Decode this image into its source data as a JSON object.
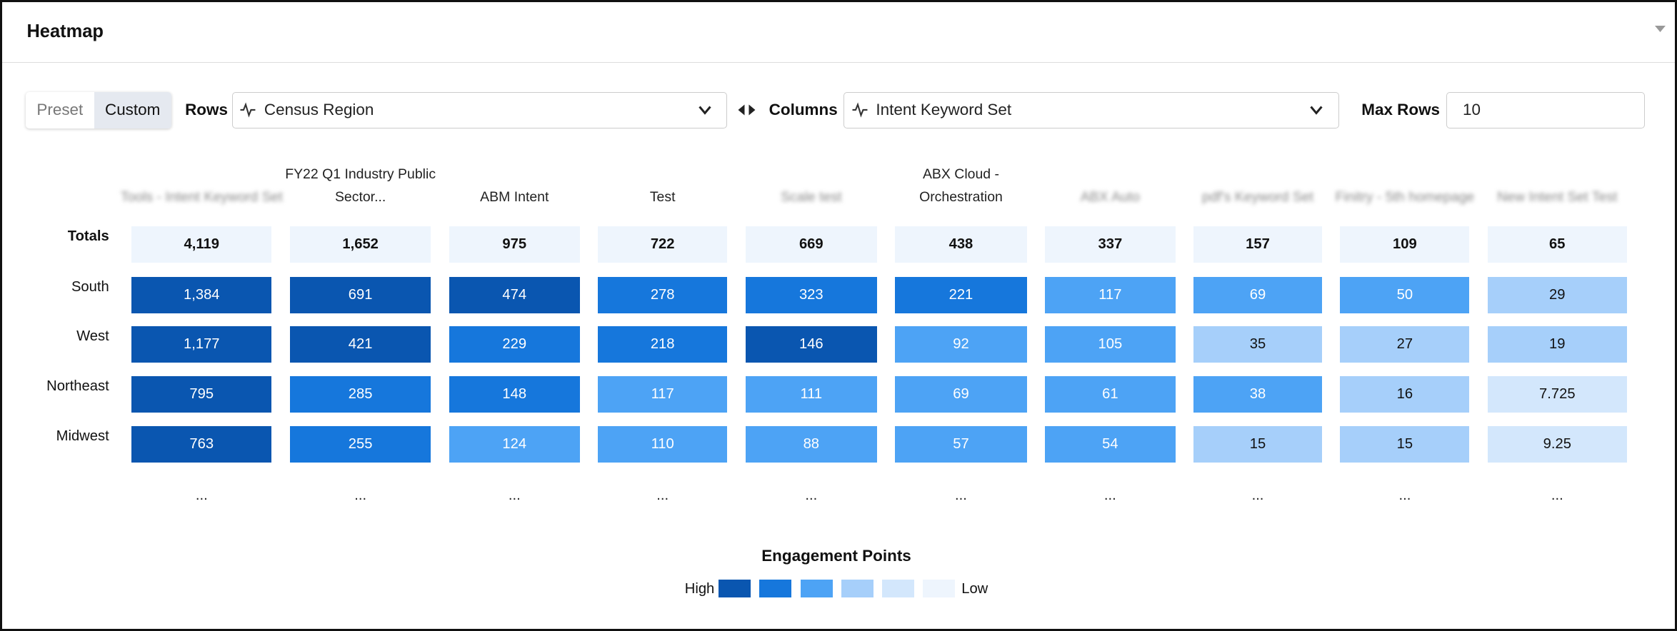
{
  "header": {
    "title": "Heatmap"
  },
  "controls": {
    "mode_options": [
      "Preset",
      "Custom"
    ],
    "rows_label": "Rows",
    "rows_value": "Census Region",
    "columns_label": "Columns",
    "columns_value": "Intent Keyword Set",
    "max_rows_label": "Max Rows",
    "max_rows_value": "10"
  },
  "table": {
    "columns": [
      {
        "name": "Tools - Intent Keyword Set",
        "blurred": true
      },
      {
        "name": "FY22 Q1 Industry Public Sector...",
        "blurred": false
      },
      {
        "name": "ABM Intent",
        "blurred": false
      },
      {
        "name": "Test",
        "blurred": false
      },
      {
        "name": "Scale test",
        "blurred": true
      },
      {
        "name": "ABX Cloud - Orchestration",
        "blurred": false
      },
      {
        "name": "ABX Auto",
        "blurred": true
      },
      {
        "name": "pdf's Keyword Set",
        "blurred": true
      },
      {
        "name": "Finitry - 5th homepage",
        "blurred": true
      },
      {
        "name": "New Intent Set Test",
        "blurred": true
      }
    ],
    "totals_label": "Totals",
    "totals": [
      "4,119",
      "1,652",
      "975",
      "722",
      "669",
      "438",
      "337",
      "157",
      "109",
      "65"
    ],
    "totals_color": "#eef5fd",
    "rows": [
      {
        "label": "South",
        "cells": [
          "1,384",
          "691",
          "474",
          "278",
          "323",
          "221",
          "117",
          "69",
          "50",
          "29"
        ],
        "colors": [
          "#0a56b0",
          "#0a56b0",
          "#0a56b0",
          "#1677dc",
          "#1677dc",
          "#1677dc",
          "#4da3f5",
          "#4da3f5",
          "#4da3f5",
          "#a6cffa"
        ]
      },
      {
        "label": "West",
        "cells": [
          "1,177",
          "421",
          "229",
          "218",
          "146",
          "92",
          "105",
          "35",
          "27",
          "19"
        ],
        "colors": [
          "#0a56b0",
          "#0a56b0",
          "#1677dc",
          "#1677dc",
          "#0a56b0",
          "#4da3f5",
          "#4da3f5",
          "#a6cffa",
          "#a6cffa",
          "#a6cffa"
        ]
      },
      {
        "label": "Northeast",
        "cells": [
          "795",
          "285",
          "148",
          "117",
          "111",
          "69",
          "61",
          "38",
          "16",
          "7.725"
        ],
        "colors": [
          "#0a56b0",
          "#1677dc",
          "#1677dc",
          "#4da3f5",
          "#4da3f5",
          "#4da3f5",
          "#4da3f5",
          "#4da3f5",
          "#a6cffa",
          "#d3e7fc"
        ]
      },
      {
        "label": "Midwest",
        "cells": [
          "763",
          "255",
          "124",
          "110",
          "88",
          "57",
          "54",
          "15",
          "15",
          "9.25"
        ],
        "colors": [
          "#0a56b0",
          "#1677dc",
          "#4da3f5",
          "#4da3f5",
          "#4da3f5",
          "#4da3f5",
          "#4da3f5",
          "#a6cffa",
          "#a6cffa",
          "#d3e7fc"
        ]
      }
    ],
    "more": [
      "...",
      "...",
      "...",
      "...",
      "...",
      "...",
      "...",
      "...",
      "...",
      "..."
    ]
  },
  "legend": {
    "title": "Engagement Points",
    "high": "High",
    "low": "Low",
    "colors": [
      "#0a56b0",
      "#1677dc",
      "#4da3f5",
      "#a6cffa",
      "#d3e7fc",
      "#eef5fd"
    ]
  }
}
